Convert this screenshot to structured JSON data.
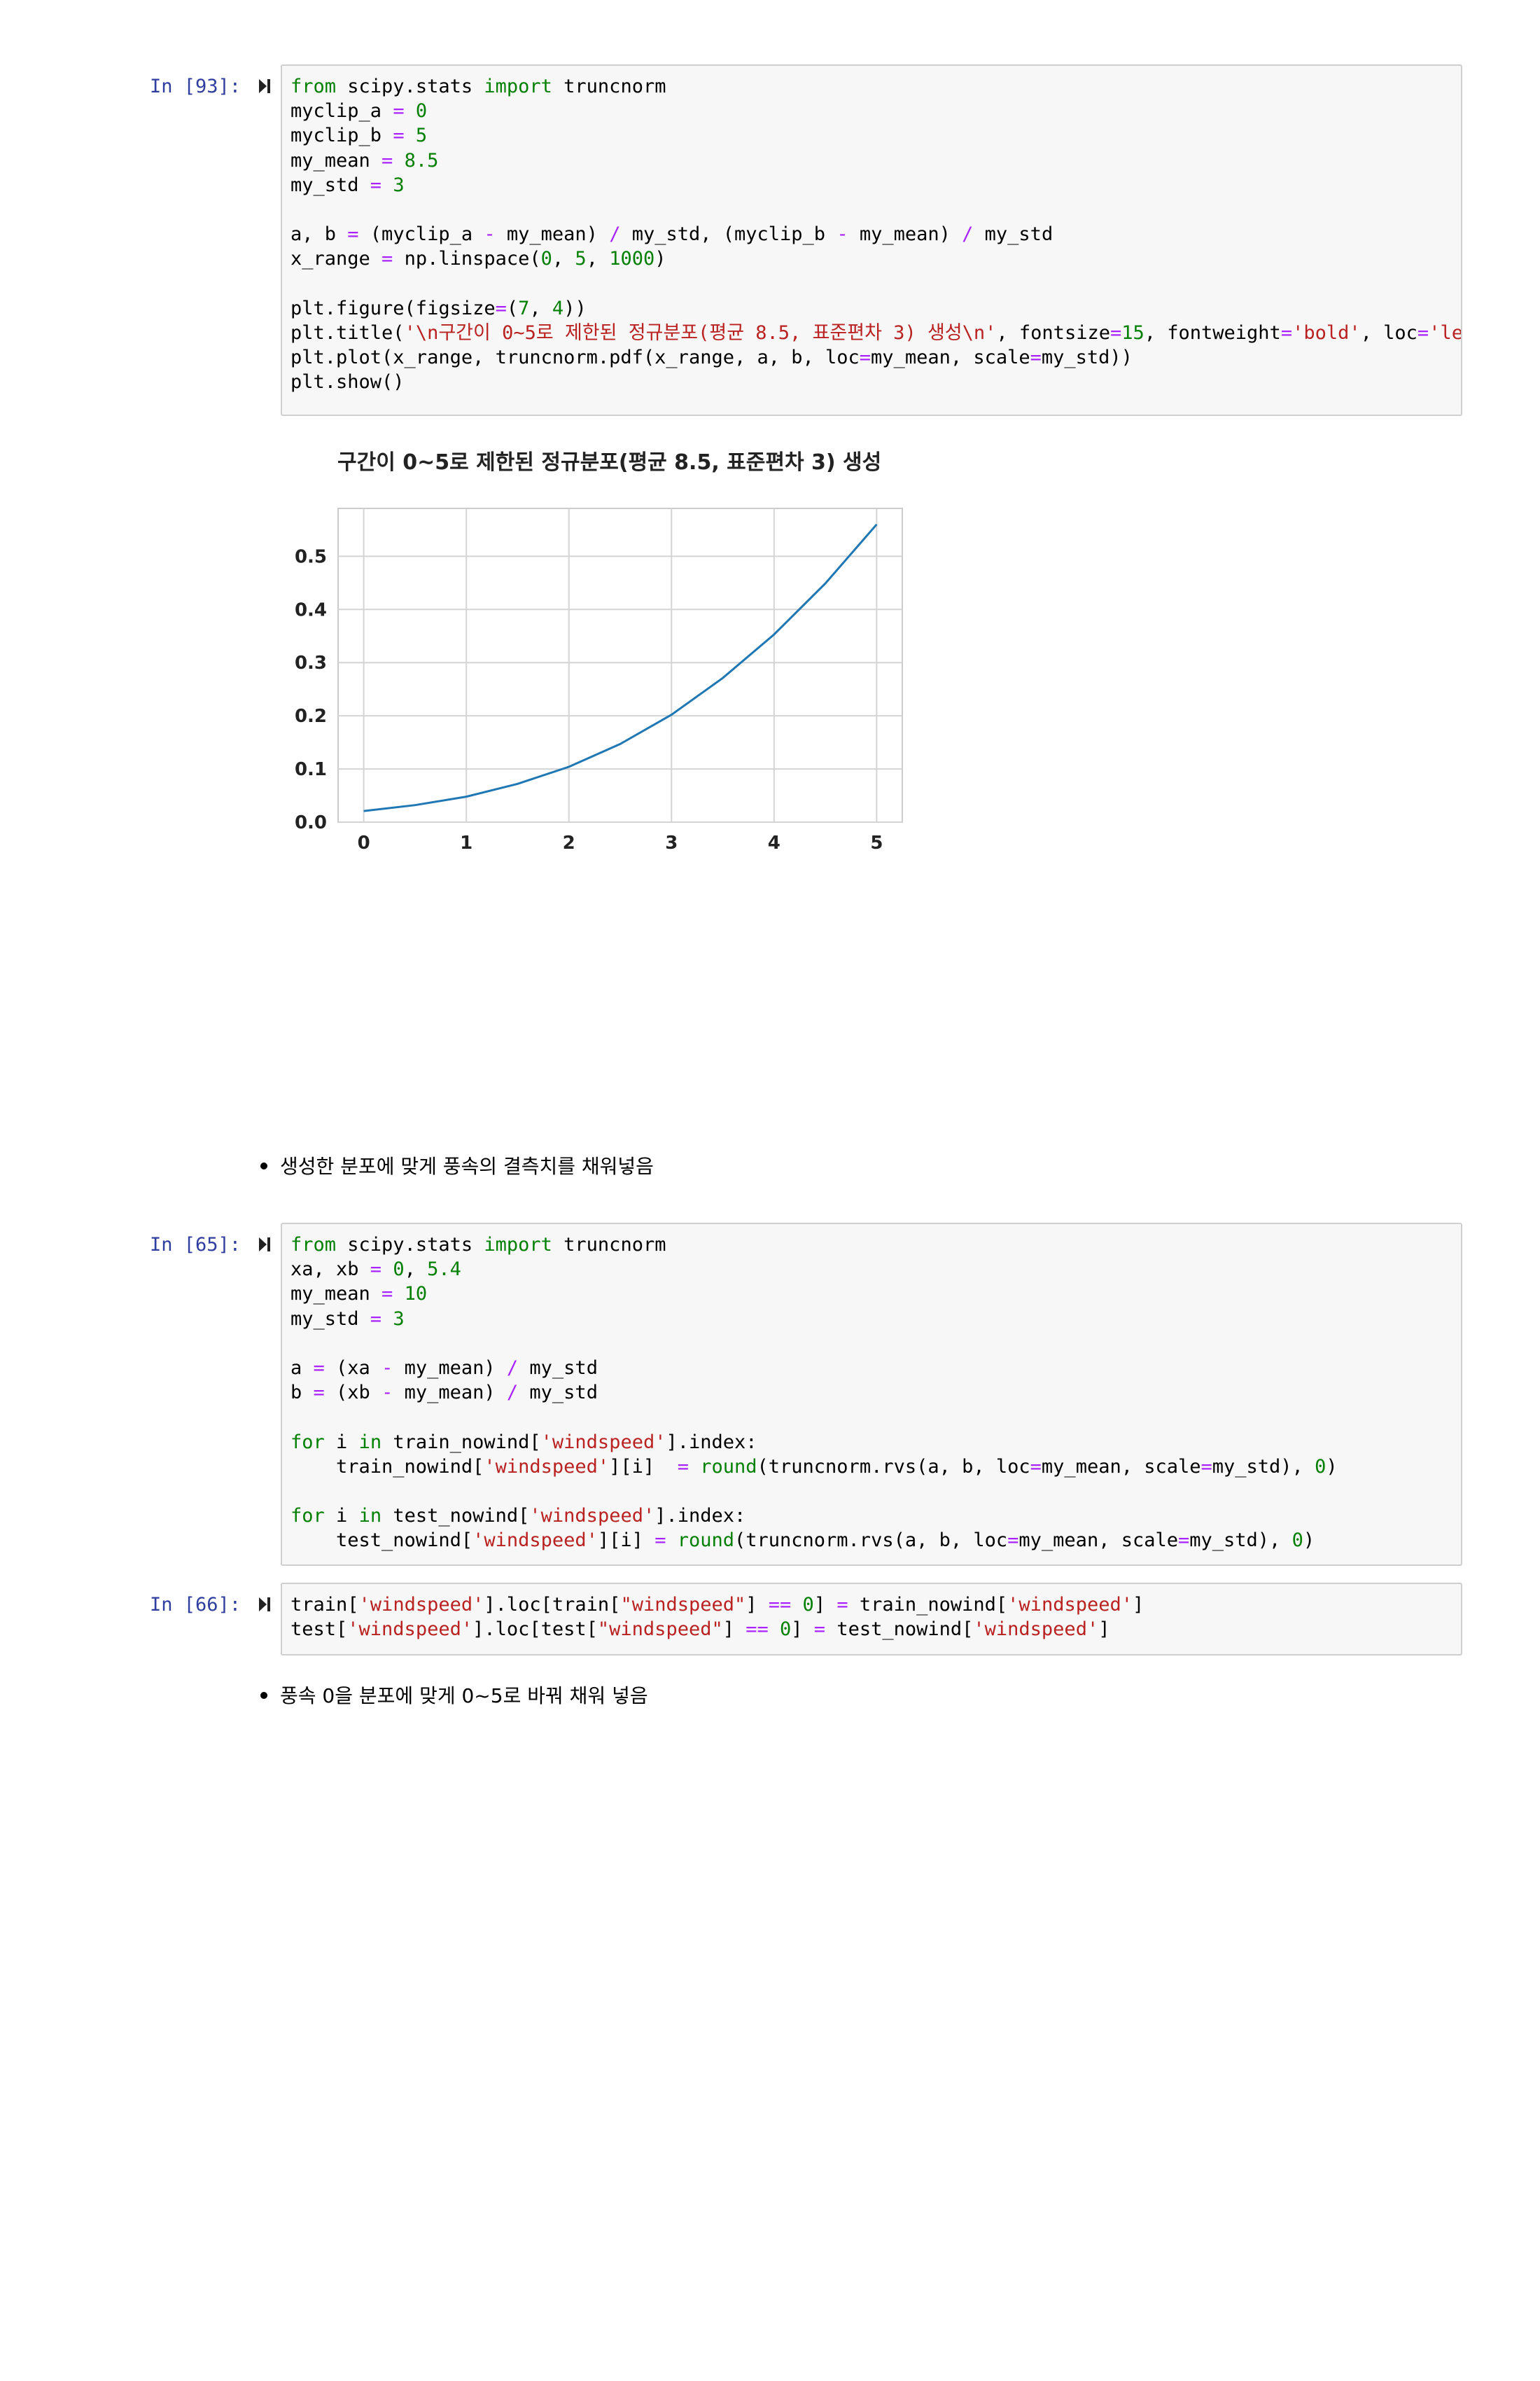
{
  "cells": [
    {
      "prompt": "In [93]:",
      "lines": [
        [
          [
            "from",
            "kw"
          ],
          [
            " scipy.stats ",
            ""
          ],
          [
            "import",
            "kw"
          ],
          [
            " truncnorm",
            ""
          ]
        ],
        [
          [
            "myclip_a ",
            ""
          ],
          [
            "=",
            "op"
          ],
          [
            " ",
            ""
          ],
          [
            "0",
            "num"
          ]
        ],
        [
          [
            "myclip_b ",
            ""
          ],
          [
            "=",
            "op"
          ],
          [
            " ",
            ""
          ],
          [
            "5",
            "num"
          ]
        ],
        [
          [
            "my_mean ",
            ""
          ],
          [
            "=",
            "op"
          ],
          [
            " ",
            ""
          ],
          [
            "8.5",
            "num"
          ]
        ],
        [
          [
            "my_std ",
            ""
          ],
          [
            "=",
            "op"
          ],
          [
            " ",
            ""
          ],
          [
            "3",
            "num"
          ]
        ],
        [],
        [
          [
            "a, b ",
            ""
          ],
          [
            "=",
            "op"
          ],
          [
            " (myclip_a ",
            ""
          ],
          [
            "-",
            "op"
          ],
          [
            " my_mean) ",
            ""
          ],
          [
            "/",
            "op"
          ],
          [
            " my_std, (myclip_b ",
            ""
          ],
          [
            "-",
            "op"
          ],
          [
            " my_mean) ",
            ""
          ],
          [
            "/",
            "op"
          ],
          [
            " my_std",
            ""
          ]
        ],
        [
          [
            "x_range ",
            ""
          ],
          [
            "=",
            "op"
          ],
          [
            " np.linspace(",
            ""
          ],
          [
            "0",
            "num"
          ],
          [
            ", ",
            ""
          ],
          [
            "5",
            "num"
          ],
          [
            ", ",
            ""
          ],
          [
            "1000",
            "num"
          ],
          [
            ")",
            ""
          ]
        ],
        [],
        [
          [
            "plt.figure(figsize",
            ""
          ],
          [
            "=",
            "op"
          ],
          [
            "(",
            ""
          ],
          [
            "7",
            "num"
          ],
          [
            ", ",
            ""
          ],
          [
            "4",
            "num"
          ],
          [
            "))",
            ""
          ]
        ],
        [
          [
            "plt.title(",
            ""
          ],
          [
            "'\\n구간이 0~5로 제한된 정규분포(평균 8.5, 표준편차 3) 생성\\n'",
            "str"
          ],
          [
            ", fontsize",
            ""
          ],
          [
            "=",
            "op"
          ],
          [
            "15",
            "num"
          ],
          [
            ", fontweight",
            ""
          ],
          [
            "=",
            "op"
          ],
          [
            "'bold'",
            "str"
          ],
          [
            ", loc",
            ""
          ],
          [
            "=",
            "op"
          ],
          [
            "'left'",
            "str"
          ],
          [
            ")",
            ""
          ]
        ],
        [
          [
            "plt.plot(x_range, truncnorm.pdf(x_range, a, b, loc",
            ""
          ],
          [
            "=",
            "op"
          ],
          [
            "my_mean, scale",
            ""
          ],
          [
            "=",
            "op"
          ],
          [
            "my_std))",
            ""
          ]
        ],
        [
          [
            "plt.show()",
            ""
          ]
        ]
      ]
    },
    {
      "prompt": "In [65]:",
      "lines": [
        [
          [
            "from",
            "kw"
          ],
          [
            " scipy.stats ",
            ""
          ],
          [
            "import",
            "kw"
          ],
          [
            " truncnorm",
            ""
          ]
        ],
        [
          [
            "xa, xb ",
            ""
          ],
          [
            "=",
            "op"
          ],
          [
            " ",
            ""
          ],
          [
            "0",
            "num"
          ],
          [
            ", ",
            ""
          ],
          [
            "5.4",
            "num"
          ]
        ],
        [
          [
            "my_mean ",
            ""
          ],
          [
            "=",
            "op"
          ],
          [
            " ",
            ""
          ],
          [
            "10",
            "num"
          ]
        ],
        [
          [
            "my_std ",
            ""
          ],
          [
            "=",
            "op"
          ],
          [
            " ",
            ""
          ],
          [
            "3",
            "num"
          ]
        ],
        [],
        [
          [
            "a ",
            ""
          ],
          [
            "=",
            "op"
          ],
          [
            " (xa ",
            ""
          ],
          [
            "-",
            "op"
          ],
          [
            " my_mean) ",
            ""
          ],
          [
            "/",
            "op"
          ],
          [
            " my_std",
            ""
          ]
        ],
        [
          [
            "b ",
            ""
          ],
          [
            "=",
            "op"
          ],
          [
            " (xb ",
            ""
          ],
          [
            "-",
            "op"
          ],
          [
            " my_mean) ",
            ""
          ],
          [
            "/",
            "op"
          ],
          [
            " my_std",
            ""
          ]
        ],
        [],
        [
          [
            "for",
            "kw"
          ],
          [
            " i ",
            ""
          ],
          [
            "in",
            "kw"
          ],
          [
            " train_nowind[",
            ""
          ],
          [
            "'windspeed'",
            "str"
          ],
          [
            "].index:",
            ""
          ]
        ],
        [
          [
            "    train_nowind[",
            ""
          ],
          [
            "'windspeed'",
            "str"
          ],
          [
            "][i]  ",
            ""
          ],
          [
            "=",
            "op"
          ],
          [
            " ",
            ""
          ],
          [
            "round",
            "kw"
          ],
          [
            "(truncnorm.rvs(a, b, loc",
            ""
          ],
          [
            "=",
            "op"
          ],
          [
            "my_mean, scale",
            ""
          ],
          [
            "=",
            "op"
          ],
          [
            "my_std), ",
            ""
          ],
          [
            "0",
            "num"
          ],
          [
            ")",
            ""
          ]
        ],
        [],
        [
          [
            "for",
            "kw"
          ],
          [
            " i ",
            ""
          ],
          [
            "in",
            "kw"
          ],
          [
            " test_nowind[",
            ""
          ],
          [
            "'windspeed'",
            "str"
          ],
          [
            "].index:",
            ""
          ]
        ],
        [
          [
            "    test_nowind[",
            ""
          ],
          [
            "'windspeed'",
            "str"
          ],
          [
            "][i] ",
            ""
          ],
          [
            "=",
            "op"
          ],
          [
            " ",
            ""
          ],
          [
            "round",
            "kw"
          ],
          [
            "(truncnorm.rvs(a, b, loc",
            ""
          ],
          [
            "=",
            "op"
          ],
          [
            "my_mean, scale",
            ""
          ],
          [
            "=",
            "op"
          ],
          [
            "my_std), ",
            ""
          ],
          [
            "0",
            "num"
          ],
          [
            ")",
            ""
          ]
        ]
      ]
    },
    {
      "prompt": "In [66]:",
      "lines": [
        [
          [
            "train[",
            ""
          ],
          [
            "'windspeed'",
            "str"
          ],
          [
            "].loc[train[",
            ""
          ],
          [
            "\"windspeed\"",
            "str"
          ],
          [
            "] ",
            ""
          ],
          [
            "==",
            "op"
          ],
          [
            " ",
            ""
          ],
          [
            "0",
            "num"
          ],
          [
            "] ",
            ""
          ],
          [
            "=",
            "op"
          ],
          [
            " train_nowind[",
            ""
          ],
          [
            "'windspeed'",
            "str"
          ],
          [
            "]",
            ""
          ]
        ],
        [
          [
            "test[",
            ""
          ],
          [
            "'windspeed'",
            "str"
          ],
          [
            "].loc[test[",
            ""
          ],
          [
            "\"windspeed\"",
            "str"
          ],
          [
            "] ",
            ""
          ],
          [
            "==",
            "op"
          ],
          [
            " ",
            ""
          ],
          [
            "0",
            "num"
          ],
          [
            "] ",
            ""
          ],
          [
            "=",
            "op"
          ],
          [
            " test_nowind[",
            ""
          ],
          [
            "'windspeed'",
            "str"
          ],
          [
            "]",
            ""
          ]
        ]
      ]
    }
  ],
  "bullets": [
    "생성한 분포에 맞게 풍속의 결측치를 채워넣음",
    "풍속 0을 분포에 맞게 0~5로 바꿔 채워 넣음"
  ],
  "chart_data": {
    "type": "line",
    "title": "구간이 0~5로 제한된 정규분포(평균 8.5, 표준편차 3) 생성",
    "xlabel": "",
    "ylabel": "",
    "xlim": [
      -0.25,
      5.25
    ],
    "ylim": [
      0.0,
      0.59
    ],
    "xticks": [
      "0",
      "1",
      "2",
      "3",
      "4",
      "5"
    ],
    "yticks": [
      "0.0",
      "0.1",
      "0.2",
      "0.3",
      "0.4",
      "0.5"
    ],
    "grid": true,
    "line_color": "#1f77b4",
    "x": [
      0,
      0.5,
      1,
      1.5,
      2,
      2.5,
      3,
      3.5,
      4,
      4.5,
      5
    ],
    "y": [
      0.021,
      0.032,
      0.048,
      0.072,
      0.104,
      0.147,
      0.202,
      0.271,
      0.353,
      0.449,
      0.56
    ]
  }
}
